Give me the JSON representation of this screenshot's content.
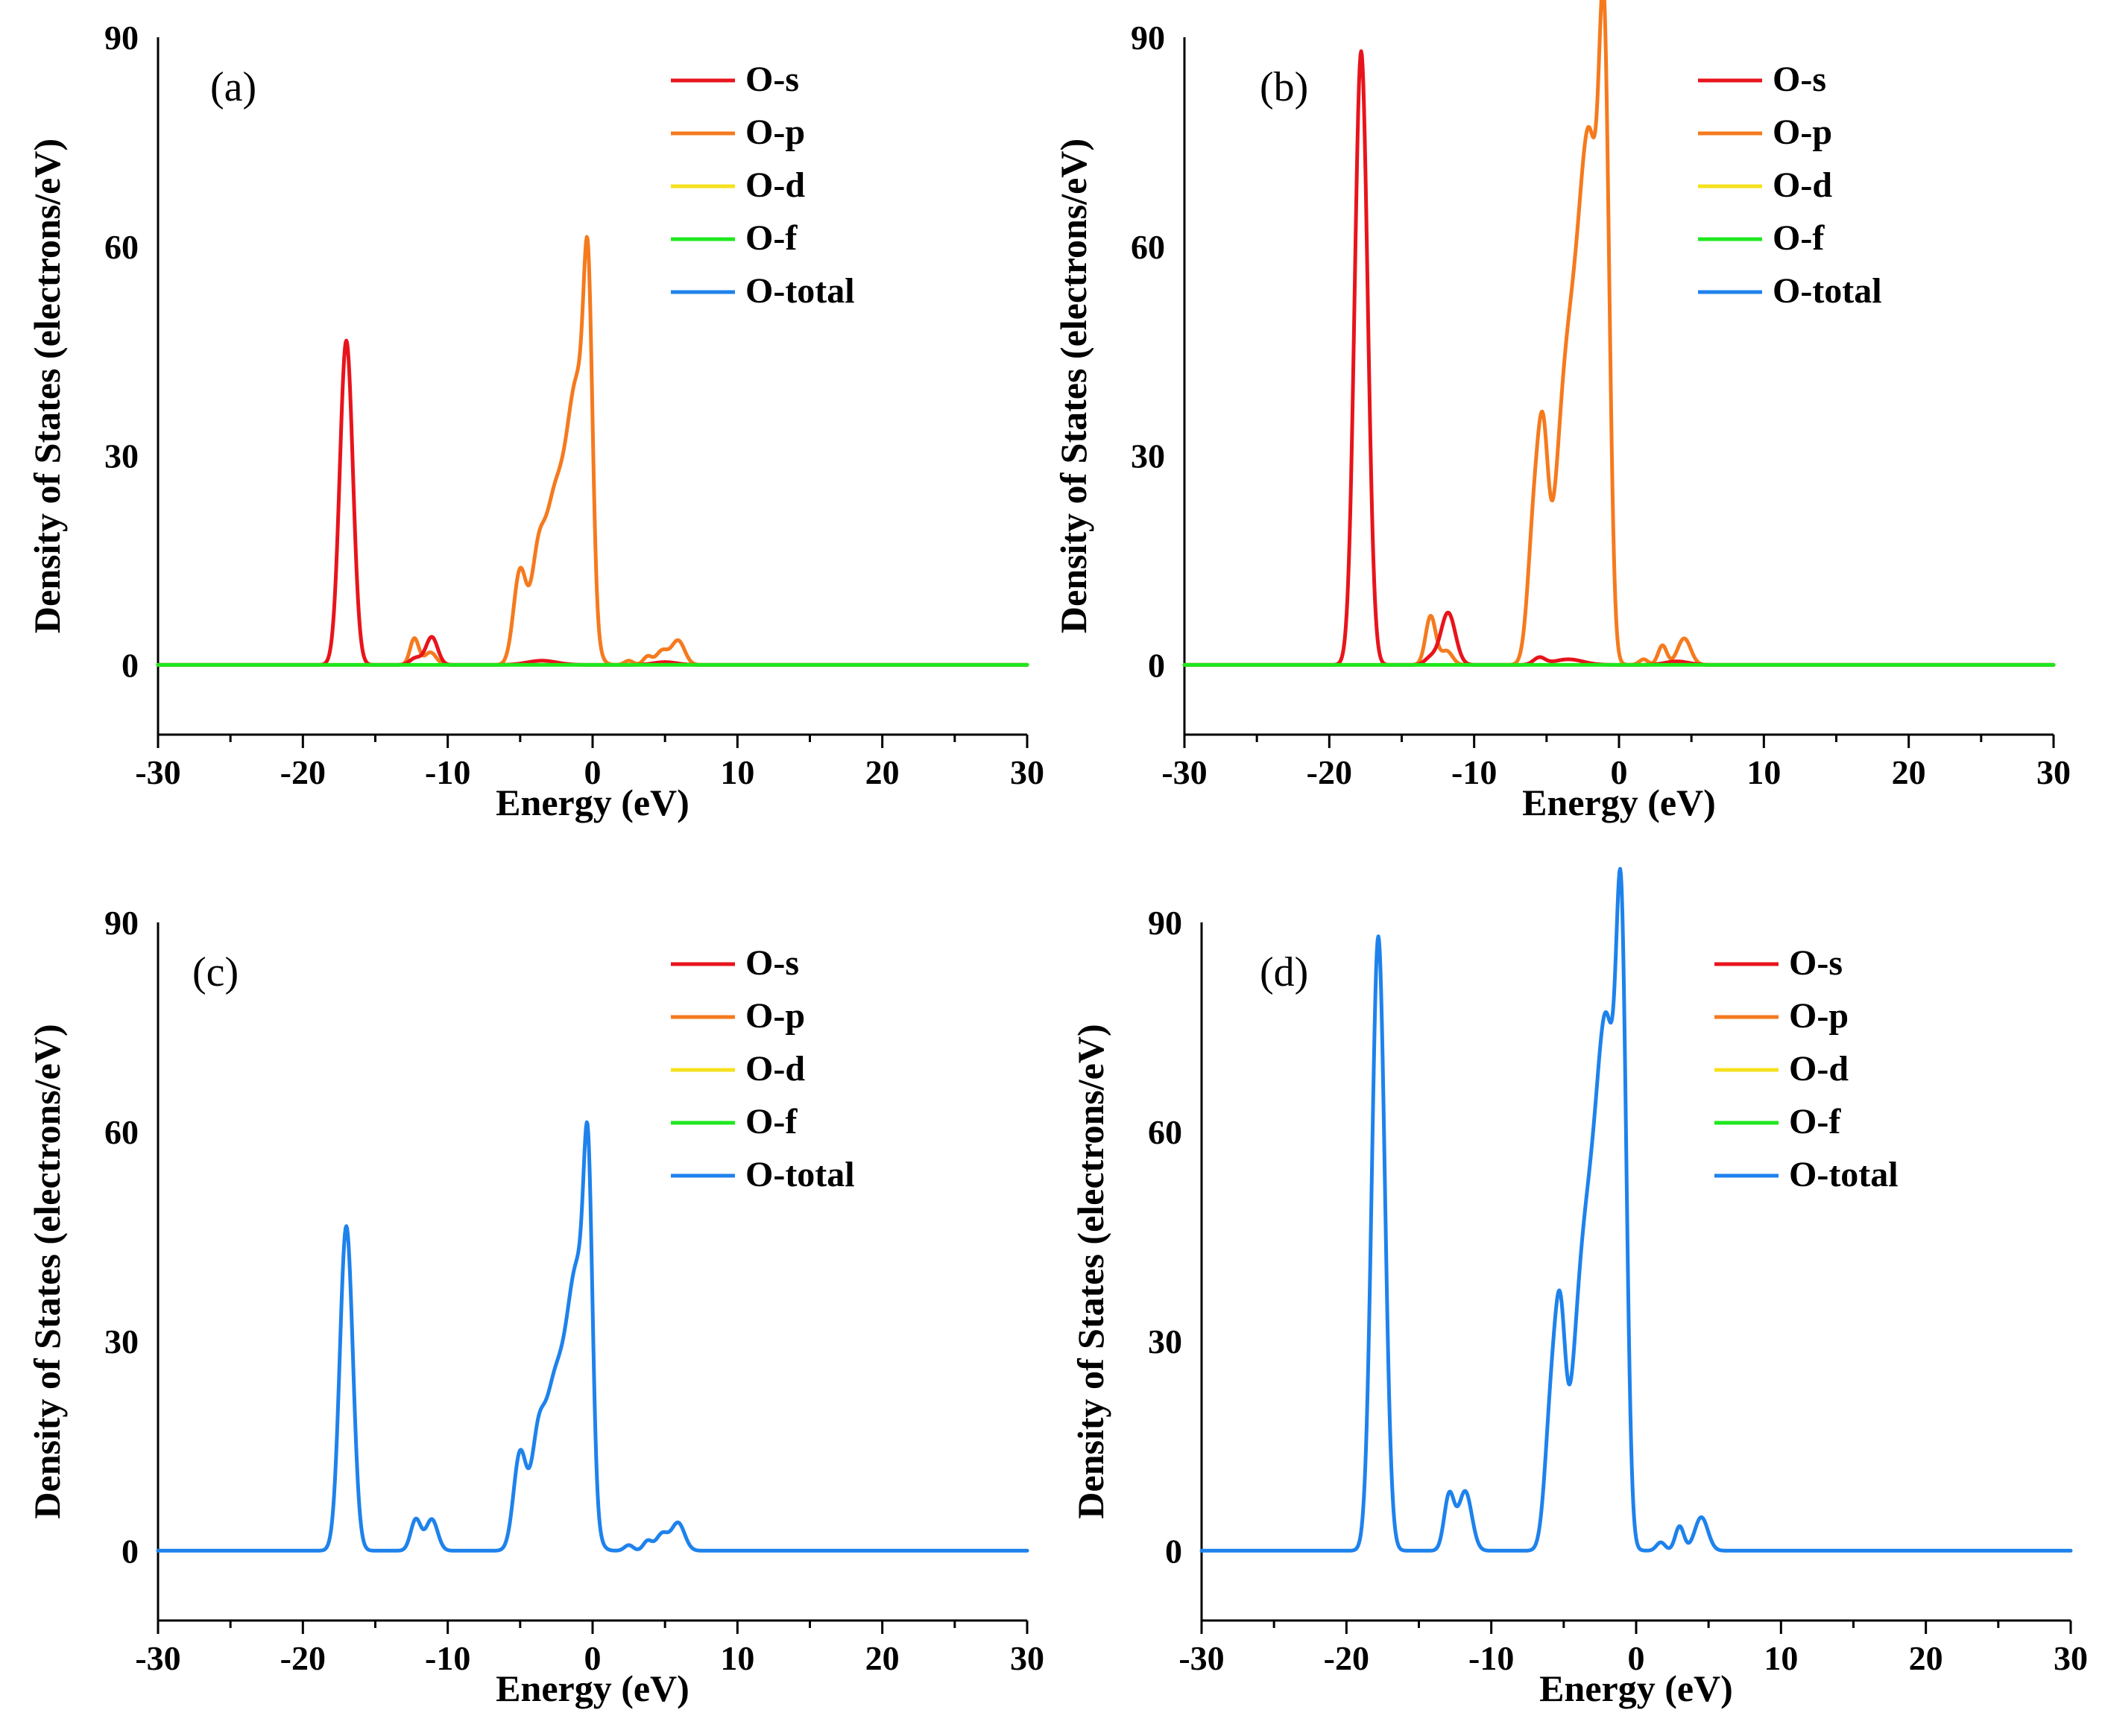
{
  "figure": {
    "xlabel": "Energy (eV)",
    "ylabel": "Density of States (electrons/eV)",
    "legend_labels": [
      "O-s",
      "O-p",
      "O-d",
      "O-f",
      "O-total"
    ],
    "series_colors": {
      "O-s": "#e8141c",
      "O-p": "#f57a1e",
      "O-d": "#f5e11e",
      "O-f": "#1ee81e",
      "O-total": "#1e82ec"
    }
  },
  "chart_data": [
    {
      "type": "line",
      "panel": "(a)",
      "xlabel": "Energy (eV)",
      "ylabel": "Density of States (electrons/eV)",
      "xlim": [
        -30,
        30
      ],
      "ylim": [
        -10,
        90
      ],
      "xticks": [
        -30,
        -20,
        -10,
        0,
        10,
        20,
        30
      ],
      "yticks": [
        0,
        30,
        60,
        90
      ],
      "legend": [
        "O-s",
        "O-p",
        "O-d",
        "O-f",
        "O-total"
      ],
      "legend_position": "top-right",
      "shown_series": [
        "O-s",
        "O-p",
        "O-f"
      ],
      "peaks": {
        "O-s": [
          [
            -17.0,
            46.5,
            0.45
          ],
          [
            -11.1,
            4.0,
            0.4
          ],
          [
            -12.2,
            1.0,
            0.4
          ],
          [
            -3.5,
            0.6,
            1.0
          ],
          [
            5.0,
            0.4,
            0.8
          ]
        ],
        "O-p": [
          [
            -12.3,
            3.8,
            0.3
          ],
          [
            -11.2,
            1.8,
            0.4
          ],
          [
            -5.0,
            13.5,
            0.45
          ],
          [
            -3.8,
            13.0,
            0.45
          ],
          [
            -2.8,
            18.0,
            0.6
          ],
          [
            -1.6,
            23.5,
            0.7
          ],
          [
            -0.8,
            25.0,
            0.6
          ],
          [
            -0.3,
            38.0,
            0.3
          ],
          [
            2.5,
            0.6,
            0.3
          ],
          [
            3.8,
            1.2,
            0.3
          ],
          [
            4.8,
            2.0,
            0.4
          ],
          [
            5.9,
            3.5,
            0.45
          ]
        ],
        "O-d": [],
        "O-f": [],
        "O-total": []
      }
    },
    {
      "type": "line",
      "panel": "(b)",
      "xlabel": "Energy (eV)",
      "ylabel": "Density of States (electrons/eV)",
      "xlim": [
        -30,
        30
      ],
      "ylim": [
        -10,
        90
      ],
      "xticks": [
        -30,
        -20,
        -10,
        0,
        10,
        20,
        30
      ],
      "yticks": [
        0,
        30,
        60,
        90
      ],
      "legend": [
        "O-s",
        "O-p",
        "O-d",
        "O-f",
        "O-total"
      ],
      "legend_position": "top-right",
      "shown_series": [
        "O-s",
        "O-p",
        "O-f"
      ],
      "peaks": {
        "O-s": [
          [
            -17.8,
            88.0,
            0.45
          ],
          [
            -11.8,
            7.5,
            0.5
          ],
          [
            -13.0,
            1.0,
            0.4
          ],
          [
            -5.5,
            1.0,
            0.4
          ],
          [
            -3.5,
            0.8,
            1.0
          ],
          [
            4.0,
            0.5,
            0.8
          ]
        ],
        "O-p": [
          [
            -13.0,
            7.0,
            0.35
          ],
          [
            -11.9,
            2.0,
            0.4
          ],
          [
            -5.8,
            22.0,
            0.45
          ],
          [
            -5.2,
            22.0,
            0.35
          ],
          [
            -3.8,
            33.0,
            0.7
          ],
          [
            -2.6,
            42.0,
            0.7
          ],
          [
            -1.8,
            48.0,
            0.6
          ],
          [
            -1.0,
            72.0,
            0.35
          ],
          [
            1.7,
            0.8,
            0.3
          ],
          [
            3.0,
            2.8,
            0.3
          ],
          [
            4.5,
            3.8,
            0.45
          ]
        ],
        "O-d": [],
        "O-f": [],
        "O-total": []
      }
    },
    {
      "type": "line",
      "panel": "(c)",
      "xlabel": "Energy (eV)",
      "ylabel": "Density of States (electrons/eV)",
      "xlim": [
        -30,
        30
      ],
      "ylim": [
        -10,
        90
      ],
      "xticks": [
        -30,
        -20,
        -10,
        0,
        10,
        20,
        30
      ],
      "yticks": [
        0,
        30,
        60,
        90
      ],
      "legend": [
        "O-s",
        "O-p",
        "O-d",
        "O-f",
        "O-total"
      ],
      "legend_position": "top-right",
      "shown_series": [
        "O-total"
      ],
      "peaks": {
        "O-s": [],
        "O-p": [],
        "O-d": [],
        "O-f": [],
        "O-total": [
          [
            -17.0,
            46.5,
            0.45
          ],
          [
            -12.2,
            4.5,
            0.35
          ],
          [
            -11.1,
            4.5,
            0.4
          ],
          [
            -5.0,
            14.0,
            0.45
          ],
          [
            -3.8,
            13.5,
            0.45
          ],
          [
            -2.8,
            18.0,
            0.6
          ],
          [
            -1.6,
            23.5,
            0.7
          ],
          [
            -0.8,
            25.0,
            0.6
          ],
          [
            -0.3,
            38.0,
            0.3
          ],
          [
            2.5,
            0.8,
            0.3
          ],
          [
            3.8,
            1.4,
            0.3
          ],
          [
            4.8,
            2.4,
            0.4
          ],
          [
            5.9,
            4.0,
            0.45
          ]
        ]
      }
    },
    {
      "type": "line",
      "panel": "(d)",
      "xlabel": "Energy (eV)",
      "ylabel": "Density of States (electrons/eV)",
      "xlim": [
        -30,
        30
      ],
      "ylim": [
        -10,
        90
      ],
      "xticks": [
        -30,
        -20,
        -10,
        0,
        10,
        20,
        30
      ],
      "yticks": [
        0,
        30,
        60,
        90
      ],
      "legend": [
        "O-s",
        "O-p",
        "O-d",
        "O-f",
        "O-total"
      ],
      "legend_position": "top-right",
      "shown_series": [
        "O-total"
      ],
      "peaks": {
        "O-s": [],
        "O-p": [],
        "O-d": [],
        "O-f": [],
        "O-total": [
          [
            -17.8,
            88.0,
            0.45
          ],
          [
            -12.9,
            8.0,
            0.35
          ],
          [
            -11.8,
            8.5,
            0.45
          ],
          [
            -5.8,
            22.0,
            0.45
          ],
          [
            -5.2,
            23.0,
            0.35
          ],
          [
            -3.8,
            33.0,
            0.7
          ],
          [
            -2.6,
            42.0,
            0.7
          ],
          [
            -1.8,
            48.0,
            0.6
          ],
          [
            -1.0,
            72.0,
            0.35
          ],
          [
            1.7,
            1.2,
            0.3
          ],
          [
            3.0,
            3.5,
            0.3
          ],
          [
            4.5,
            4.8,
            0.45
          ]
        ]
      }
    }
  ]
}
